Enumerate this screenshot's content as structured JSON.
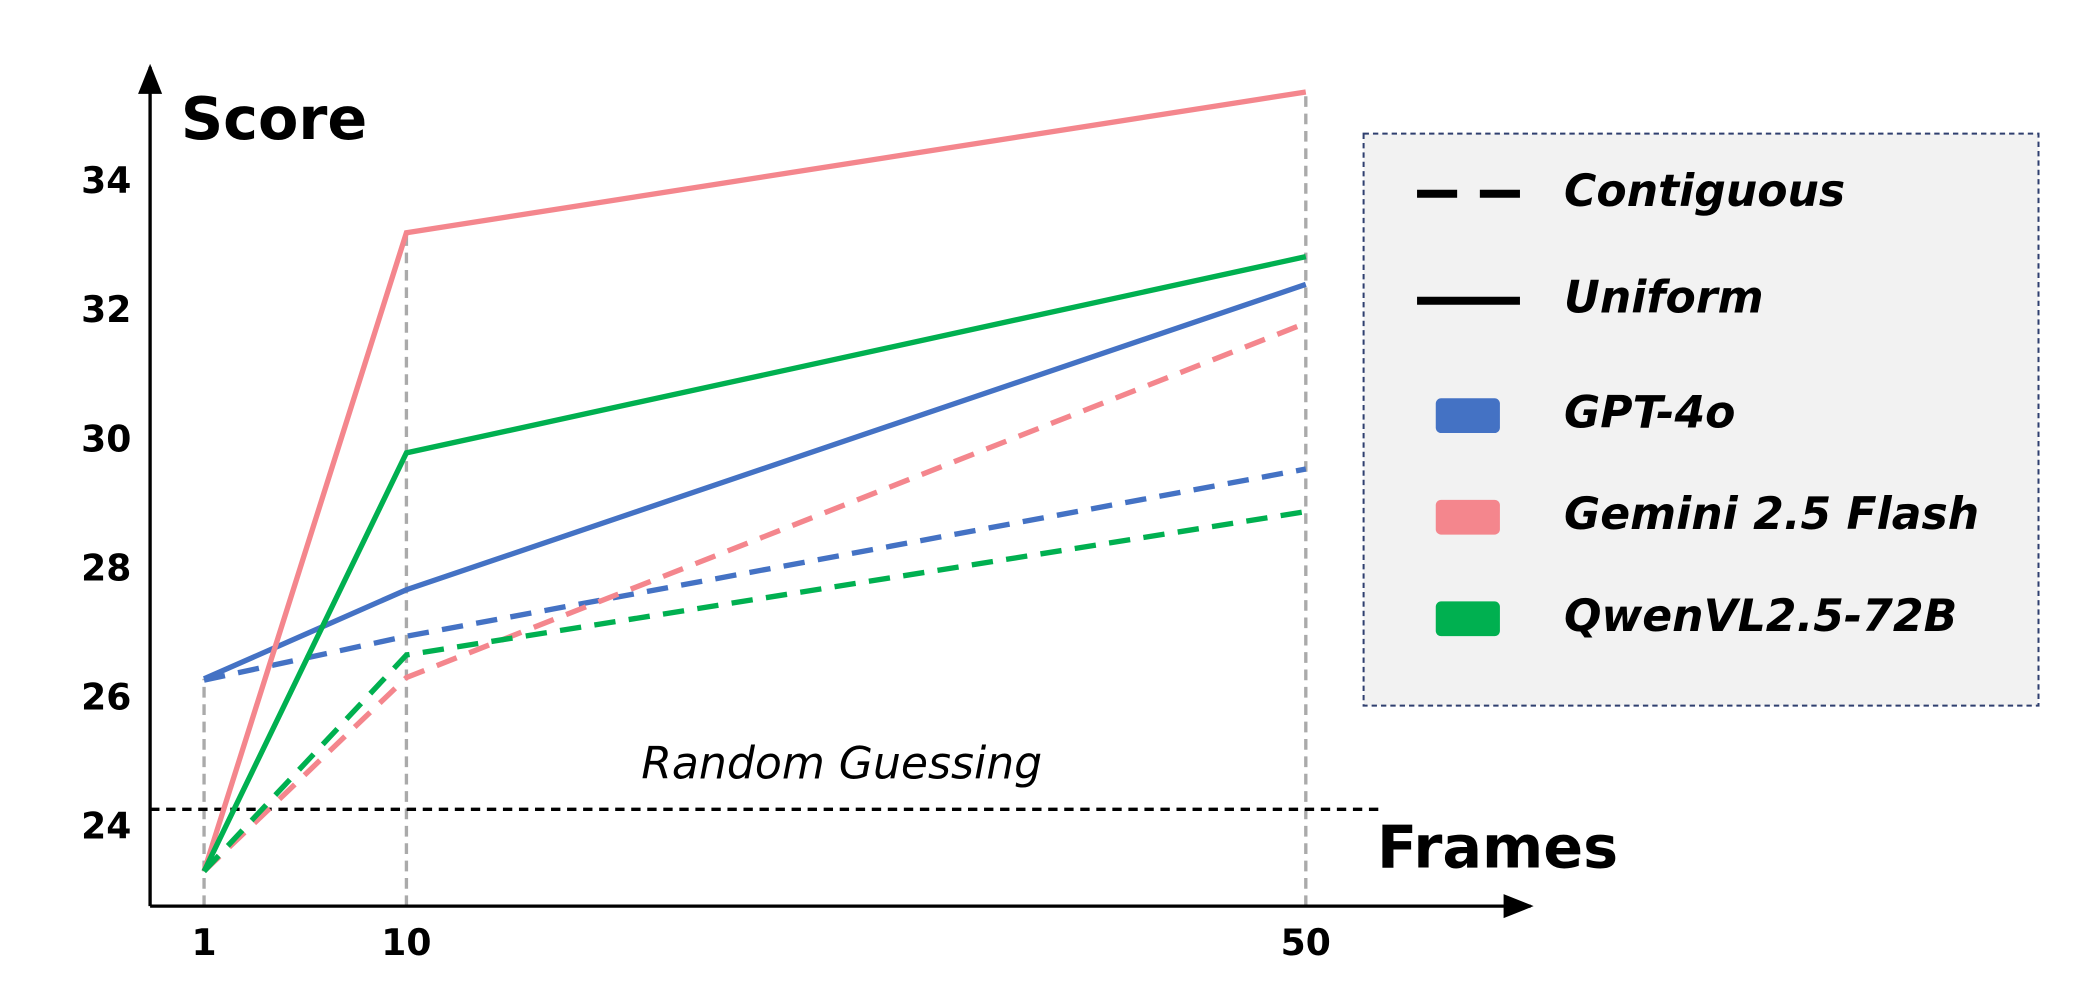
{
  "chart_data": {
    "type": "line",
    "y_label": "Score",
    "x_label": "Frames",
    "x": [
      1,
      10,
      50
    ],
    "xlim": [
      -1.4,
      60
    ],
    "xticks": [
      1,
      10,
      50
    ],
    "ylim": [
      22.8,
      35.8
    ],
    "yticks": [
      24,
      26,
      28,
      30,
      32,
      34
    ],
    "line_styles": [
      {
        "name": "Contiguous",
        "dashed": true
      },
      {
        "name": "Uniform",
        "dashed": false
      }
    ],
    "series": [
      {
        "name": "GPT-4o",
        "color": "#4472c4",
        "values": [
          [
            26.3,
            26.98,
            29.57
          ],
          [
            26.32,
            27.7,
            32.43
          ]
        ]
      },
      {
        "name": "Gemini 2.5 Flash",
        "color": "#f4868d",
        "values": [
          [
            23.34,
            26.34,
            31.83
          ],
          [
            23.34,
            33.23,
            35.41
          ]
        ]
      },
      {
        "name": "QwenVL2.5-72B",
        "color": "#00b050",
        "values": [
          [
            23.34,
            26.69,
            28.91
          ],
          [
            23.34,
            29.82,
            32.86
          ]
        ]
      }
    ],
    "reference_line": {
      "value": 24.3,
      "label": "Random Guessing"
    }
  }
}
